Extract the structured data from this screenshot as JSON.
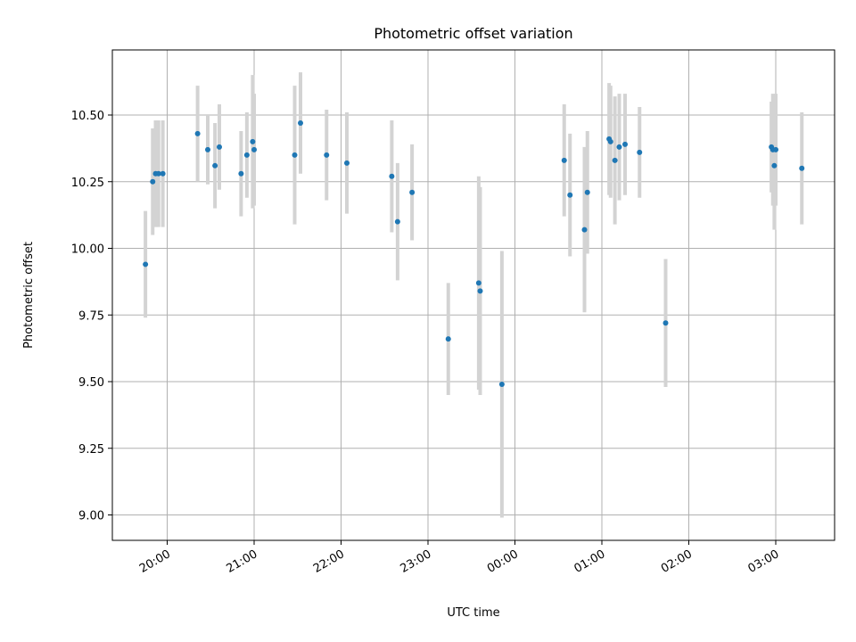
{
  "chart_data": {
    "type": "scatter",
    "title": "Photometric offset variation",
    "xlabel": "UTC time",
    "ylabel": "Photometric offset",
    "x_tick_labels": [
      "20:00",
      "21:00",
      "22:00",
      "23:00",
      "00:00",
      "01:00",
      "02:00",
      "03:00"
    ],
    "y_tick_labels": [
      "9.00",
      "9.25",
      "9.50",
      "9.75",
      "10.00",
      "10.25",
      "10.50"
    ],
    "grid": true,
    "error_bars": true,
    "colors": {
      "point": "#1f77b4",
      "error_bar": "#d3d3d3",
      "grid": "#b0b0b0"
    },
    "points": [
      {
        "time": "19:45",
        "y": 9.94,
        "err": 0.2
      },
      {
        "time": "19:50",
        "y": 10.25,
        "err": 0.2
      },
      {
        "time": "19:52",
        "y": 10.28,
        "err": 0.2
      },
      {
        "time": "19:54",
        "y": 10.28,
        "err": 0.2
      },
      {
        "time": "19:57",
        "y": 10.28,
        "err": 0.2
      },
      {
        "time": "20:21",
        "y": 10.43,
        "err": 0.18
      },
      {
        "time": "20:28",
        "y": 10.37,
        "err": 0.13
      },
      {
        "time": "20:33",
        "y": 10.31,
        "err": 0.16
      },
      {
        "time": "20:36",
        "y": 10.38,
        "err": 0.16
      },
      {
        "time": "20:51",
        "y": 10.28,
        "err": 0.16
      },
      {
        "time": "20:55",
        "y": 10.35,
        "err": 0.16
      },
      {
        "time": "20:59",
        "y": 10.4,
        "err": 0.25
      },
      {
        "time": "21:00",
        "y": 10.37,
        "err": 0.21
      },
      {
        "time": "21:28",
        "y": 10.35,
        "err": 0.26
      },
      {
        "time": "21:32",
        "y": 10.47,
        "err": 0.19
      },
      {
        "time": "21:50",
        "y": 10.35,
        "err": 0.17
      },
      {
        "time": "22:04",
        "y": 10.32,
        "err": 0.19
      },
      {
        "time": "22:35",
        "y": 10.27,
        "err": 0.21
      },
      {
        "time": "22:39",
        "y": 10.1,
        "err": 0.22
      },
      {
        "time": "22:49",
        "y": 10.21,
        "err": 0.18
      },
      {
        "time": "23:14",
        "y": 9.66,
        "err": 0.21
      },
      {
        "time": "23:35",
        "y": 9.87,
        "err": 0.4
      },
      {
        "time": "23:36",
        "y": 9.84,
        "err": 0.39
      },
      {
        "time": "23:51",
        "y": 9.49,
        "err": 0.5
      },
      {
        "time": "00:34",
        "y": 10.33,
        "err": 0.21
      },
      {
        "time": "00:38",
        "y": 10.2,
        "err": 0.23
      },
      {
        "time": "00:48",
        "y": 10.07,
        "err": 0.31
      },
      {
        "time": "00:50",
        "y": 10.21,
        "err": 0.23
      },
      {
        "time": "01:05",
        "y": 10.41,
        "err": 0.21
      },
      {
        "time": "01:06",
        "y": 10.4,
        "err": 0.21
      },
      {
        "time": "01:09",
        "y": 10.33,
        "err": 0.24
      },
      {
        "time": "01:12",
        "y": 10.38,
        "err": 0.2
      },
      {
        "time": "01:16",
        "y": 10.39,
        "err": 0.19
      },
      {
        "time": "01:26",
        "y": 10.36,
        "err": 0.17
      },
      {
        "time": "01:44",
        "y": 9.72,
        "err": 0.24
      },
      {
        "time": "02:57",
        "y": 10.38,
        "err": 0.17
      },
      {
        "time": "02:58",
        "y": 10.37,
        "err": 0.21
      },
      {
        "time": "02:59",
        "y": 10.31,
        "err": 0.24
      },
      {
        "time": "03:00",
        "y": 10.37,
        "err": 0.21
      },
      {
        "time": "03:18",
        "y": 10.3,
        "err": 0.21
      }
    ]
  }
}
